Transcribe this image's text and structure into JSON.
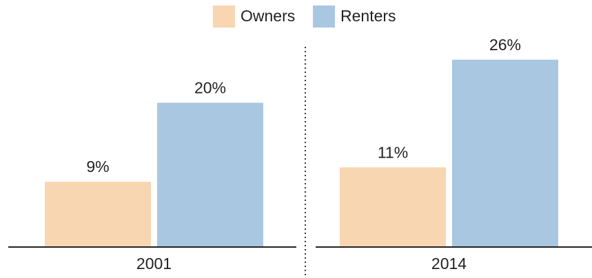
{
  "chart_data": {
    "type": "bar",
    "categories": [
      "2001",
      "2014"
    ],
    "series": [
      {
        "name": "Owners",
        "color": "#f7d6b1",
        "values": [
          9,
          11
        ],
        "value_labels": [
          "9%",
          "11%"
        ]
      },
      {
        "name": "Renters",
        "color": "#a9c7e0",
        "values": [
          20,
          26
        ],
        "value_labels": [
          "20%",
          "26%"
        ]
      }
    ],
    "ylim": [
      0,
      30
    ]
  }
}
